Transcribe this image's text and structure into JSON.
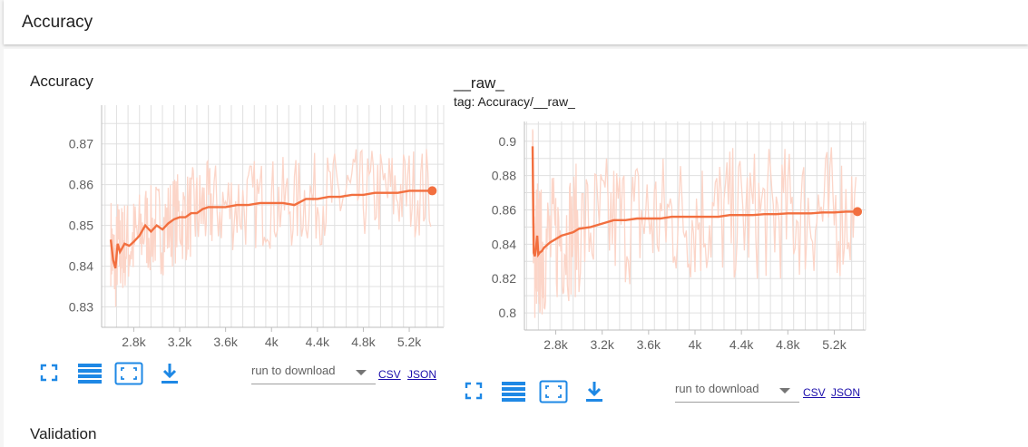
{
  "header": {
    "title": "Accuracy"
  },
  "section_next": {
    "title": "Validation"
  },
  "theme": {
    "line_color": "#f26f3f",
    "raw_color": "#fcd5c8",
    "grid_color": "#e0e0e0",
    "icon_color": "#1e88e5"
  },
  "cards": [
    {
      "title": "Accuracy",
      "tag": "",
      "download": {
        "placeholder": "run to download",
        "csv_label": "CSV",
        "json_label": "JSON"
      },
      "icons": [
        "fit-domain-icon",
        "toggle-log-icon",
        "expand-icon",
        "download-icon"
      ]
    },
    {
      "title": "__raw_",
      "tag": "tag: Accuracy/__raw_",
      "download": {
        "placeholder": "run to download",
        "csv_label": "CSV",
        "json_label": "JSON"
      },
      "icons": [
        "fit-domain-icon",
        "toggle-log-icon",
        "expand-icon",
        "download-icon"
      ]
    }
  ],
  "chart_data": [
    {
      "type": "line",
      "title": "Accuracy",
      "x_ticks": [
        "2.8k",
        "3.2k",
        "3.6k",
        "4k",
        "4.4k",
        "4.8k",
        "5.2k"
      ],
      "y_ticks": [
        "0.83",
        "0.84",
        "0.85",
        "0.86",
        "0.87"
      ],
      "xlim": [
        2520,
        5500
      ],
      "ylim": [
        0.825,
        0.8795
      ],
      "grid": true,
      "series": [
        {
          "role": "smoothed",
          "x": [
            2600,
            2620,
            2640,
            2660,
            2680,
            2700,
            2720,
            2760,
            2800,
            2850,
            2900,
            2950,
            3000,
            3050,
            3100,
            3150,
            3200,
            3250,
            3300,
            3350,
            3400,
            3450,
            3500,
            3600,
            3700,
            3800,
            3900,
            4000,
            4100,
            4200,
            4300,
            4400,
            4500,
            4600,
            4700,
            4800,
            4900,
            5000,
            5100,
            5200,
            5300,
            5400
          ],
          "y": [
            0.8465,
            0.8415,
            0.8395,
            0.8455,
            0.8435,
            0.8445,
            0.8455,
            0.845,
            0.846,
            0.8475,
            0.85,
            0.8485,
            0.85,
            0.849,
            0.8505,
            0.8515,
            0.852,
            0.852,
            0.853,
            0.853,
            0.854,
            0.8545,
            0.8545,
            0.8545,
            0.855,
            0.855,
            0.8555,
            0.8555,
            0.8555,
            0.855,
            0.8565,
            0.8565,
            0.857,
            0.857,
            0.8575,
            0.8575,
            0.858,
            0.858,
            0.858,
            0.8585,
            0.8585,
            0.8585
          ]
        }
      ]
    },
    {
      "type": "line",
      "title": "__raw_",
      "subtitle": "tag: Accuracy/__raw_",
      "x_ticks": [
        "2.8k",
        "3.2k",
        "3.6k",
        "4k",
        "4.4k",
        "4.8k",
        "5.2k"
      ],
      "y_ticks": [
        "0.8",
        "0.82",
        "0.84",
        "0.86",
        "0.88",
        "0.9"
      ],
      "xlim": [
        2530,
        5470
      ],
      "ylim": [
        0.79,
        0.9115
      ],
      "grid": true,
      "series": [
        {
          "role": "smoothed",
          "x": [
            2600,
            2610,
            2620,
            2630,
            2640,
            2650,
            2660,
            2680,
            2700,
            2750,
            2800,
            2850,
            2900,
            2950,
            3000,
            3100,
            3200,
            3300,
            3400,
            3500,
            3600,
            3700,
            3800,
            3900,
            4000,
            4100,
            4200,
            4300,
            4400,
            4500,
            4600,
            4700,
            4800,
            4900,
            5000,
            5100,
            5200,
            5300,
            5400
          ],
          "y": [
            0.897,
            0.835,
            0.833,
            0.838,
            0.845,
            0.834,
            0.835,
            0.836,
            0.838,
            0.841,
            0.843,
            0.845,
            0.846,
            0.847,
            0.849,
            0.85,
            0.852,
            0.854,
            0.854,
            0.855,
            0.855,
            0.855,
            0.856,
            0.856,
            0.856,
            0.856,
            0.856,
            0.857,
            0.857,
            0.857,
            0.8575,
            0.8575,
            0.858,
            0.858,
            0.858,
            0.8585,
            0.8585,
            0.859,
            0.859
          ]
        }
      ]
    }
  ]
}
